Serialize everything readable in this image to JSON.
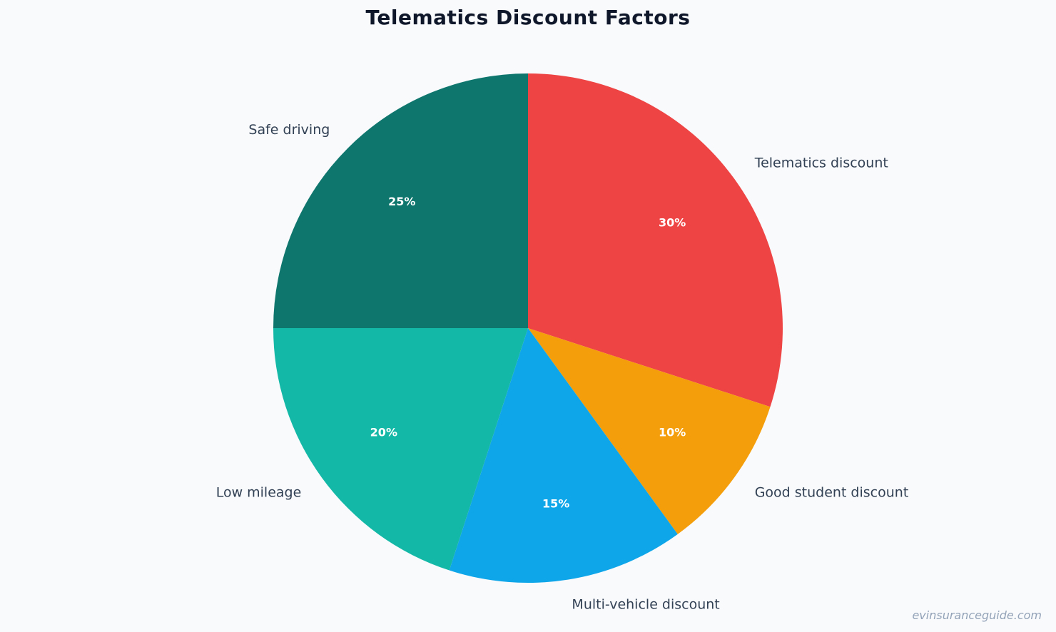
{
  "chart_data": {
    "type": "pie",
    "title": "Telematics Discount Factors",
    "start_angle_deg": 90,
    "direction": "clockwise",
    "slices": [
      {
        "label": "Telematics discount",
        "value": 30,
        "pct_label": "30%",
        "color": "#ef4444"
      },
      {
        "label": "Good student discount",
        "value": 10,
        "pct_label": "10%",
        "color": "#f59e0b"
      },
      {
        "label": "Multi-vehicle discount",
        "value": 15,
        "pct_label": "15%",
        "color": "#0ea5e9"
      },
      {
        "label": "Low mileage",
        "value": 20,
        "pct_label": "20%",
        "color": "#14b8a6"
      },
      {
        "label": "Safe driving",
        "value": 25,
        "pct_label": "25%",
        "color": "#0f766e"
      }
    ]
  },
  "watermark": "evinsuranceguide.com"
}
